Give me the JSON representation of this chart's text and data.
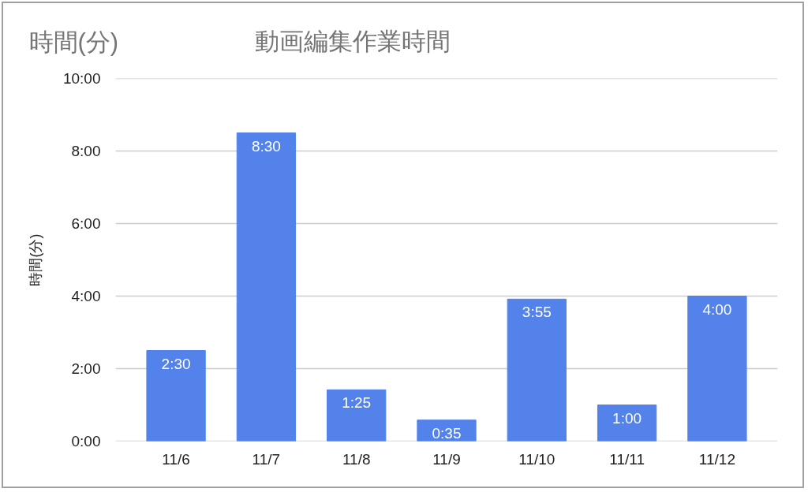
{
  "chart_data": {
    "type": "bar",
    "title": "動画編集作業時間",
    "ylabel": "時間(分)",
    "annotations": [
      "時間(分)"
    ],
    "categories": [
      "11/6",
      "11/7",
      "11/8",
      "11/9",
      "11/10",
      "11/11",
      "11/12"
    ],
    "values": [
      2.5,
      8.5,
      1.4167,
      0.5833,
      3.9167,
      1,
      4
    ],
    "color": "#5383ea",
    "value_labels": [
      "2:30",
      "8:30",
      "1:25",
      "0:35",
      "3:55",
      "1:00",
      "4:00"
    ],
    "ylim": [
      0,
      10
    ],
    "yticks": [
      {
        "value": 0,
        "label": "0:00"
      },
      {
        "value": 2,
        "label": "2:00"
      },
      {
        "value": 4,
        "label": "4:00"
      },
      {
        "value": 6,
        "label": "6:00"
      },
      {
        "value": 8,
        "label": "8:00"
      },
      {
        "value": 10,
        "label": "10:00"
      }
    ],
    "grid": "y"
  }
}
